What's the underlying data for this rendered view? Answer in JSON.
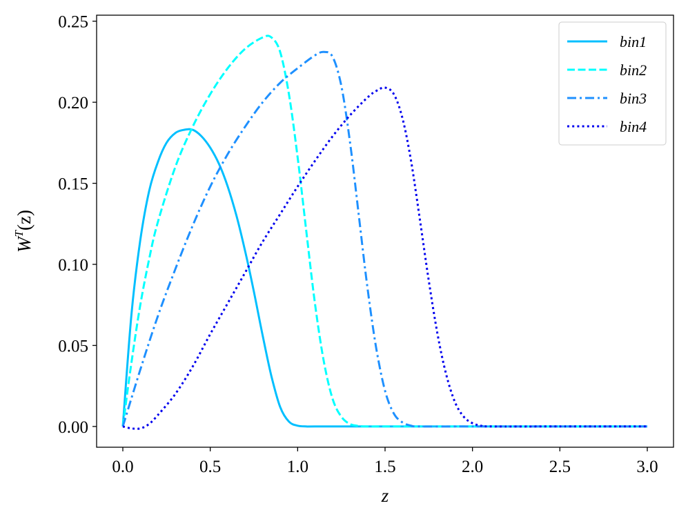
{
  "chart_data": {
    "type": "line",
    "title": "",
    "xlabel": "z",
    "ylabel": "W^T(z)",
    "ylabel_main": "W",
    "ylabel_sup": "T",
    "ylabel_arg": "(z)",
    "xlim": [
      -0.15,
      3.15
    ],
    "ylim": [
      -0.0128,
      0.2537
    ],
    "xticks": [
      0.0,
      0.5,
      1.0,
      1.5,
      2.0,
      2.5,
      3.0
    ],
    "xtick_labels": [
      "0.0",
      "0.5",
      "1.0",
      "1.5",
      "2.0",
      "2.5",
      "3.0"
    ],
    "yticks": [
      0.0,
      0.05,
      0.1,
      0.15,
      0.2,
      0.25
    ],
    "ytick_labels": [
      "0.00",
      "0.05",
      "0.10",
      "0.15",
      "0.20",
      "0.25"
    ],
    "grid": false,
    "legend_position": "top-right",
    "series": [
      {
        "name": "bin1",
        "color": "#00bfff",
        "dash": "solid",
        "x": [
          0.0,
          0.05,
          0.1,
          0.15,
          0.2,
          0.25,
          0.3,
          0.35,
          0.4,
          0.45,
          0.5,
          0.55,
          0.6,
          0.65,
          0.7,
          0.75,
          0.8,
          0.85,
          0.9,
          0.95,
          1.0,
          1.05,
          1.1,
          1.5,
          2.0,
          2.5,
          3.0
        ],
        "y": [
          0.0,
          0.07,
          0.115,
          0.145,
          0.163,
          0.175,
          0.181,
          0.183,
          0.183,
          0.179,
          0.172,
          0.162,
          0.148,
          0.13,
          0.108,
          0.083,
          0.056,
          0.031,
          0.012,
          0.003,
          0.0005,
          0.0,
          0.0,
          0.0,
          0.0,
          0.0,
          0.0
        ]
      },
      {
        "name": "bin2",
        "color": "#00ffff",
        "dash": "dashed",
        "x": [
          0.0,
          0.05,
          0.1,
          0.15,
          0.2,
          0.3,
          0.4,
          0.5,
          0.6,
          0.7,
          0.8,
          0.85,
          0.9,
          0.95,
          1.0,
          1.05,
          1.1,
          1.15,
          1.2,
          1.25,
          1.3,
          1.35,
          1.4,
          1.5,
          2.0,
          2.5,
          3.0
        ],
        "y": [
          0.0,
          0.04,
          0.075,
          0.103,
          0.126,
          0.16,
          0.185,
          0.205,
          0.221,
          0.233,
          0.24,
          0.24,
          0.231,
          0.205,
          0.166,
          0.12,
          0.075,
          0.04,
          0.017,
          0.006,
          0.0015,
          0.0003,
          0.0,
          0.0,
          0.0,
          0.0,
          0.0
        ]
      },
      {
        "name": "bin3",
        "color": "#1e90ff",
        "dash": "dashdot",
        "x": [
          0.0,
          0.1,
          0.2,
          0.3,
          0.4,
          0.5,
          0.6,
          0.7,
          0.8,
          0.9,
          1.0,
          1.1,
          1.15,
          1.2,
          1.25,
          1.3,
          1.35,
          1.4,
          1.45,
          1.5,
          1.55,
          1.6,
          1.65,
          1.7,
          2.0,
          2.5,
          3.0
        ],
        "y": [
          0.0,
          0.035,
          0.068,
          0.097,
          0.124,
          0.148,
          0.168,
          0.185,
          0.2,
          0.212,
          0.221,
          0.229,
          0.231,
          0.228,
          0.21,
          0.175,
          0.13,
          0.085,
          0.048,
          0.022,
          0.008,
          0.0025,
          0.0005,
          0.0,
          0.0,
          0.0,
          0.0
        ]
      },
      {
        "name": "bin4",
        "color": "#0000ee",
        "dash": "dotted",
        "x": [
          0.0,
          0.05,
          0.1,
          0.15,
          0.2,
          0.3,
          0.4,
          0.5,
          0.6,
          0.7,
          0.8,
          0.9,
          1.0,
          1.1,
          1.2,
          1.3,
          1.4,
          1.45,
          1.5,
          1.55,
          1.6,
          1.65,
          1.7,
          1.75,
          1.8,
          1.85,
          1.9,
          1.95,
          2.0,
          2.05,
          2.1,
          2.5,
          3.0
        ],
        "y": [
          0.0,
          -0.0012,
          -0.0012,
          0.0015,
          0.007,
          0.02,
          0.037,
          0.057,
          0.076,
          0.095,
          0.114,
          0.131,
          0.148,
          0.164,
          0.179,
          0.192,
          0.203,
          0.207,
          0.209,
          0.205,
          0.19,
          0.163,
          0.127,
          0.09,
          0.057,
          0.032,
          0.015,
          0.006,
          0.002,
          0.0005,
          0.0,
          0.0,
          0.0
        ]
      }
    ]
  }
}
